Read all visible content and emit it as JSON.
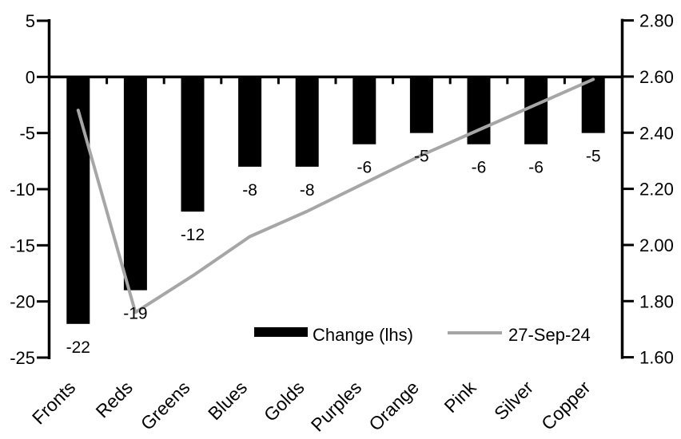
{
  "chart_data": {
    "type": "combo-bar-line",
    "title": "",
    "categories": [
      "Fronts",
      "Reds",
      "Greens",
      "Blues",
      "Golds",
      "Purples",
      "Orange",
      "Pink",
      "Silver",
      "Copper"
    ],
    "series": [
      {
        "name": "Change (lhs)",
        "type": "bar",
        "axis": "left",
        "color": "#000000",
        "values": [
          -22,
          -19,
          -12,
          -8,
          -8,
          -6,
          -5,
          -6,
          -6,
          -5
        ],
        "data_labels": [
          "-22",
          "-19",
          "-12",
          "-8",
          "-8",
          "-6",
          "-5",
          "-6",
          "-6",
          "-5"
        ]
      },
      {
        "name": "27-Sep-24",
        "type": "line",
        "axis": "right",
        "color": "#a6a6a6",
        "values": [
          2.48,
          1.76,
          1.89,
          2.03,
          2.12,
          2.22,
          2.32,
          2.41,
          2.5,
          2.59
        ]
      }
    ],
    "left_axis": {
      "min": -25,
      "max": 5,
      "tick_step": 5,
      "tick_labels": [
        "5",
        "0",
        "-5",
        "-10",
        "-15",
        "-20",
        "-25"
      ]
    },
    "right_axis": {
      "min": 1.6,
      "max": 2.8,
      "tick_step": 0.2,
      "tick_labels": [
        "2.80",
        "2.60",
        "2.40",
        "2.20",
        "2.00",
        "1.80",
        "1.60"
      ]
    },
    "legend": {
      "position": "bottom-inside",
      "entries": [
        {
          "label": "Change (lhs)",
          "swatch": "bar"
        },
        {
          "label": "27-Sep-24",
          "swatch": "line"
        }
      ]
    },
    "grid": false,
    "colors": {
      "bar": "#000000",
      "line": "#a6a6a6",
      "axis": "#000000",
      "background": "#ffffff",
      "text": "#000000"
    }
  }
}
